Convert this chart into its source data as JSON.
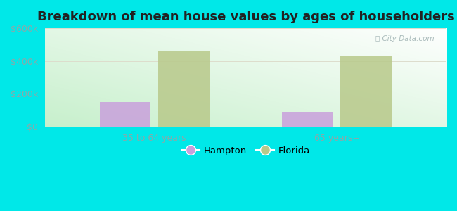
{
  "title": "Breakdown of mean house values by ages of householders",
  "categories": [
    "35 to 64 years",
    "65 years+"
  ],
  "hampton_values": [
    150000,
    90000
  ],
  "florida_values": [
    460000,
    430000
  ],
  "hampton_color": "#c9a0dc",
  "florida_color": "#b8c98a",
  "ylim": [
    0,
    600000
  ],
  "yticks": [
    0,
    200000,
    400000,
    600000
  ],
  "ytick_labels": [
    "$0",
    "$200k",
    "$400k",
    "$600k"
  ],
  "legend_labels": [
    "Hampton",
    "Florida"
  ],
  "background_color": "#00e8e8",
  "title_fontsize": 13,
  "axis_tick_color": "#88aaaa",
  "bar_width": 0.28
}
